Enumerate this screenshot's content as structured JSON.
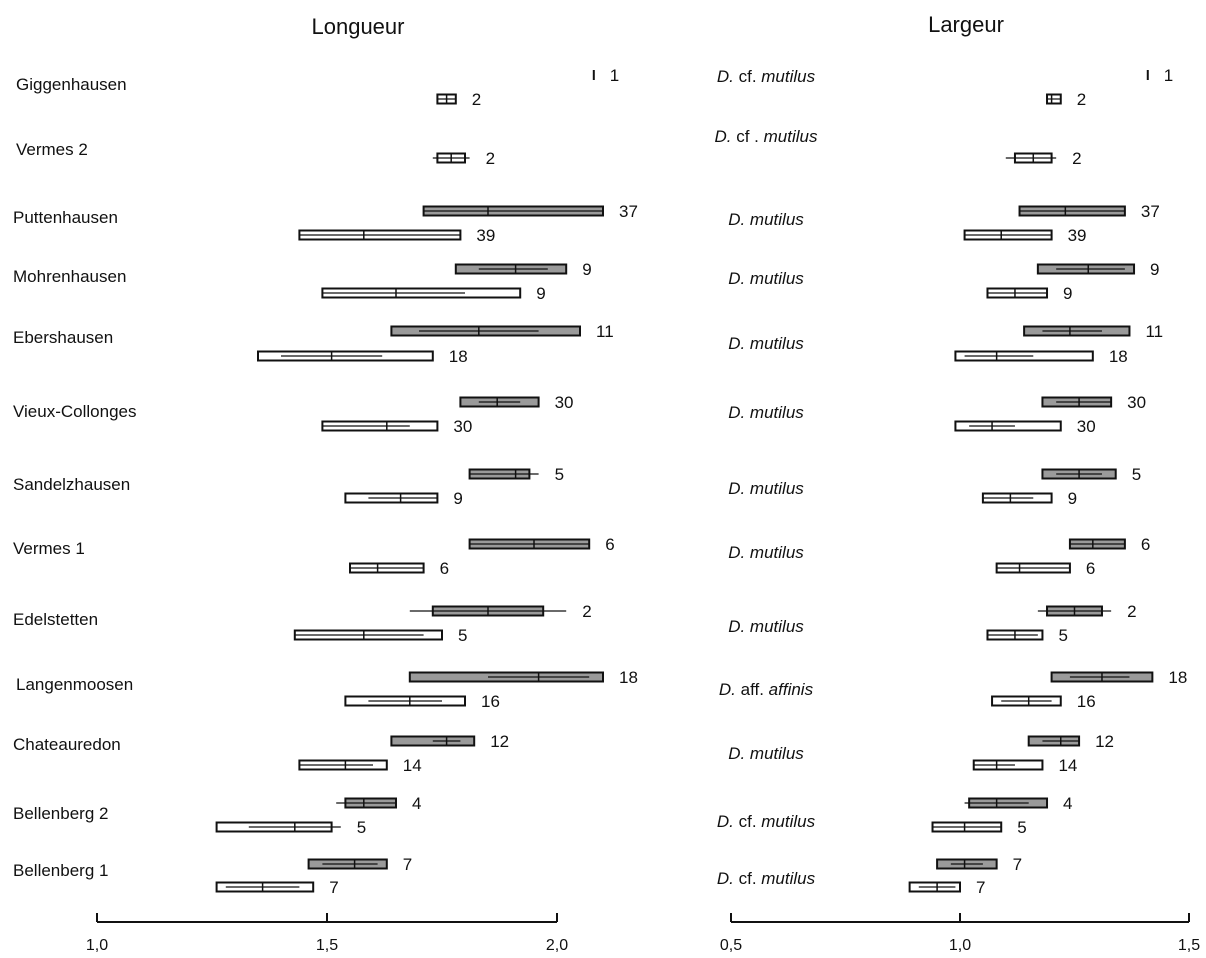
{
  "chart_data": {
    "type": "box",
    "panels": [
      {
        "title": "Longueur",
        "xlim": [
          1.0,
          2.0
        ],
        "ticks": [
          1.0,
          1.5,
          2.0
        ],
        "tick_labels": [
          "1,0",
          "1,5",
          "2,0"
        ],
        "series_styles": {
          "upper": "gray filled box",
          "lower": "white box"
        },
        "sites": [
          {
            "name": "Giggenhausen",
            "upper": {
              "box": [
                2.08,
                2.08
              ],
              "median": 2.08,
              "whisker": [
                2.08,
                2.08
              ],
              "n": "1"
            },
            "lower": {
              "box": [
                1.74,
                1.78
              ],
              "median": 1.76,
              "whisker": [
                1.74,
                1.78
              ],
              "n": "2"
            }
          },
          {
            "name": "Vermes 2",
            "upper": null,
            "lower": {
              "box": [
                1.74,
                1.8
              ],
              "median": 1.77,
              "whisker": [
                1.73,
                1.81
              ],
              "n": "2"
            }
          },
          {
            "name": "Puttenhausen",
            "upper": {
              "box": [
                1.71,
                2.1
              ],
              "median": 1.85,
              "whisker": [
                1.71,
                2.1
              ],
              "n": "37"
            },
            "lower": {
              "box": [
                1.44,
                1.79
              ],
              "median": 1.58,
              "whisker": [
                1.44,
                1.79
              ],
              "n": "39"
            }
          },
          {
            "name": "Mohrenhausen",
            "upper": {
              "box": [
                1.78,
                2.02
              ],
              "median": 1.91,
              "whisker": [
                1.83,
                1.98
              ],
              "n": "9"
            },
            "lower": {
              "box": [
                1.49,
                1.92
              ],
              "median": 1.65,
              "whisker": [
                1.49,
                1.8
              ],
              "n": "9"
            }
          },
          {
            "name": "Ebershausen",
            "upper": {
              "box": [
                1.64,
                2.05
              ],
              "median": 1.83,
              "whisker": [
                1.7,
                1.96
              ],
              "n": "11"
            },
            "lower": {
              "box": [
                1.35,
                1.73
              ],
              "median": 1.51,
              "whisker": [
                1.4,
                1.62
              ],
              "n": "18"
            }
          },
          {
            "name": "Vieux-Collonges",
            "upper": {
              "box": [
                1.79,
                1.96
              ],
              "median": 1.87,
              "whisker": [
                1.83,
                1.92
              ],
              "n": "30"
            },
            "lower": {
              "box": [
                1.49,
                1.74
              ],
              "median": 1.63,
              "whisker": [
                1.49,
                1.68
              ],
              "n": "30"
            }
          },
          {
            "name": "Sandelzhausen",
            "upper": {
              "box": [
                1.81,
                1.94
              ],
              "median": 1.91,
              "whisker": [
                1.81,
                1.96
              ],
              "n": "5"
            },
            "lower": {
              "box": [
                1.54,
                1.74
              ],
              "median": 1.66,
              "whisker": [
                1.59,
                1.74
              ],
              "n": "9"
            }
          },
          {
            "name": "Vermes 1",
            "upper": {
              "box": [
                1.81,
                2.07
              ],
              "median": 1.95,
              "whisker": [
                1.81,
                2.07
              ],
              "n": "6"
            },
            "lower": {
              "box": [
                1.55,
                1.71
              ],
              "median": 1.61,
              "whisker": [
                1.55,
                1.71
              ],
              "n": "6"
            }
          },
          {
            "name": "Edelstetten",
            "upper": {
              "box": [
                1.73,
                1.97
              ],
              "median": 1.85,
              "whisker": [
                1.68,
                2.02
              ],
              "n": "2"
            },
            "lower": {
              "box": [
                1.43,
                1.75
              ],
              "median": 1.58,
              "whisker": [
                1.43,
                1.71
              ],
              "n": "5"
            }
          },
          {
            "name": "Langenmoosen",
            "upper": {
              "box": [
                1.68,
                2.1
              ],
              "median": 1.96,
              "whisker": [
                1.85,
                2.07
              ],
              "n": "18"
            },
            "lower": {
              "box": [
                1.54,
                1.8
              ],
              "median": 1.68,
              "whisker": [
                1.59,
                1.75
              ],
              "n": "16"
            }
          },
          {
            "name": "Chateauredon",
            "upper": {
              "box": [
                1.64,
                1.82
              ],
              "median": 1.76,
              "whisker": [
                1.73,
                1.79
              ],
              "n": "12"
            },
            "lower": {
              "box": [
                1.44,
                1.63
              ],
              "median": 1.54,
              "whisker": [
                1.44,
                1.6
              ],
              "n": "14"
            }
          },
          {
            "name": "Bellenberg 2",
            "upper": {
              "box": [
                1.54,
                1.65
              ],
              "median": 1.58,
              "whisker": [
                1.52,
                1.65
              ],
              "n": "4"
            },
            "lower": {
              "box": [
                1.26,
                1.51
              ],
              "median": 1.43,
              "whisker": [
                1.33,
                1.53
              ],
              "n": "5"
            }
          },
          {
            "name": "Bellenberg 1",
            "upper": {
              "box": [
                1.46,
                1.63
              ],
              "median": 1.56,
              "whisker": [
                1.49,
                1.61
              ],
              "n": "7"
            },
            "lower": {
              "box": [
                1.26,
                1.47
              ],
              "median": 1.36,
              "whisker": [
                1.28,
                1.44
              ],
              "n": "7"
            }
          }
        ]
      },
      {
        "title": "Largeur",
        "xlim": [
          0.5,
          1.5
        ],
        "ticks": [
          0.5,
          1.0,
          1.5
        ],
        "tick_labels": [
          "0,5",
          "1,0",
          "1,5"
        ],
        "series_styles": {
          "upper": "gray filled box",
          "lower": "white box"
        },
        "sites": [
          {
            "taxon": [
              "D.",
              "cf.",
              "mutilus"
            ],
            "upper": {
              "box": [
                1.41,
                1.41
              ],
              "median": 1.41,
              "whisker": [
                1.41,
                1.41
              ],
              "n": "1"
            },
            "lower": {
              "box": [
                1.19,
                1.22
              ],
              "median": 1.2,
              "whisker": [
                1.19,
                1.22
              ],
              "n": "2"
            }
          },
          {
            "taxon": [
              "D.",
              "cf .",
              "mutilus"
            ],
            "upper": null,
            "lower": {
              "box": [
                1.12,
                1.2
              ],
              "median": 1.16,
              "whisker": [
                1.1,
                1.21
              ],
              "n": "2"
            }
          },
          {
            "taxon": [
              "D. mutilus"
            ],
            "upper": {
              "box": [
                1.13,
                1.36
              ],
              "median": 1.23,
              "whisker": [
                1.13,
                1.36
              ],
              "n": "37"
            },
            "lower": {
              "box": [
                1.01,
                1.2
              ],
              "median": 1.09,
              "whisker": [
                1.01,
                1.2
              ],
              "n": "39"
            }
          },
          {
            "taxon": [
              "D. mutilus"
            ],
            "upper": {
              "box": [
                1.17,
                1.38
              ],
              "median": 1.28,
              "whisker": [
                1.21,
                1.36
              ],
              "n": "9"
            },
            "lower": {
              "box": [
                1.06,
                1.19
              ],
              "median": 1.12,
              "whisker": [
                1.06,
                1.19
              ],
              "n": "9"
            }
          },
          {
            "taxon": [
              "D. mutilus"
            ],
            "upper": {
              "box": [
                1.14,
                1.37
              ],
              "median": 1.24,
              "whisker": [
                1.18,
                1.31
              ],
              "n": "11"
            },
            "lower": {
              "box": [
                0.99,
                1.29
              ],
              "median": 1.08,
              "whisker": [
                1.01,
                1.16
              ],
              "n": "18"
            }
          },
          {
            "taxon": [
              "D. mutilus"
            ],
            "upper": {
              "box": [
                1.18,
                1.33
              ],
              "median": 1.26,
              "whisker": [
                1.21,
                1.33
              ],
              "n": "30"
            },
            "lower": {
              "box": [
                0.99,
                1.22
              ],
              "median": 1.07,
              "whisker": [
                1.02,
                1.12
              ],
              "n": "30"
            }
          },
          {
            "taxon": [
              "D. mutilus"
            ],
            "upper": {
              "box": [
                1.18,
                1.34
              ],
              "median": 1.26,
              "whisker": [
                1.21,
                1.31
              ],
              "n": "5"
            },
            "lower": {
              "box": [
                1.05,
                1.2
              ],
              "median": 1.11,
              "whisker": [
                1.05,
                1.16
              ],
              "n": "9"
            }
          },
          {
            "taxon": [
              "D. mutilus"
            ],
            "upper": {
              "box": [
                1.24,
                1.36
              ],
              "median": 1.29,
              "whisker": [
                1.24,
                1.36
              ],
              "n": "6"
            },
            "lower": {
              "box": [
                1.08,
                1.24
              ],
              "median": 1.13,
              "whisker": [
                1.08,
                1.24
              ],
              "n": "6"
            }
          },
          {
            "taxon": [
              "D. mutilus"
            ],
            "upper": {
              "box": [
                1.19,
                1.31
              ],
              "median": 1.25,
              "whisker": [
                1.17,
                1.33
              ],
              "n": "2"
            },
            "lower": {
              "box": [
                1.06,
                1.18
              ],
              "median": 1.12,
              "whisker": [
                1.06,
                1.17
              ],
              "n": "5"
            }
          },
          {
            "taxon": [
              "D.",
              "aff.",
              "affinis"
            ],
            "upper": {
              "box": [
                1.2,
                1.42
              ],
              "median": 1.31,
              "whisker": [
                1.24,
                1.37
              ],
              "n": "18"
            },
            "lower": {
              "box": [
                1.07,
                1.22
              ],
              "median": 1.15,
              "whisker": [
                1.09,
                1.2
              ],
              "n": "16"
            }
          },
          {
            "taxon": [
              "D. mutilus"
            ],
            "upper": {
              "box": [
                1.15,
                1.26
              ],
              "median": 1.22,
              "whisker": [
                1.18,
                1.26
              ],
              "n": "12"
            },
            "lower": {
              "box": [
                1.03,
                1.18
              ],
              "median": 1.08,
              "whisker": [
                1.03,
                1.12
              ],
              "n": "14"
            }
          },
          {
            "taxon": [
              "D.",
              "cf.",
              "mutilus"
            ],
            "upper": {
              "box": [
                1.02,
                1.19
              ],
              "median": 1.08,
              "whisker": [
                1.01,
                1.15
              ],
              "n": "4"
            },
            "lower": {
              "box": [
                0.94,
                1.09
              ],
              "median": 1.01,
              "whisker": [
                0.94,
                1.09
              ],
              "n": "5"
            }
          },
          {
            "taxon": [
              "D.",
              "cf.",
              "mutilus"
            ],
            "upper": {
              "box": [
                0.95,
                1.08
              ],
              "median": 1.01,
              "whisker": [
                0.98,
                1.05
              ],
              "n": "7"
            },
            "lower": {
              "box": [
                0.89,
                1.0
              ],
              "median": 0.95,
              "whisker": [
                0.91,
                0.99
              ],
              "n": "7"
            }
          }
        ]
      }
    ],
    "grid": false,
    "legend": "none"
  }
}
